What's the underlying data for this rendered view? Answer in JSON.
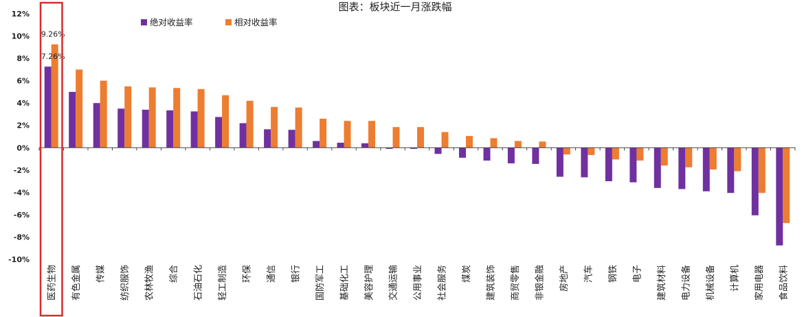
{
  "chart_data": {
    "type": "bar",
    "title": "图表：板块近一月涨跌幅",
    "xlabel": "",
    "ylabel": "",
    "ylim": [
      -10,
      12
    ],
    "y_ticks": [
      "12%",
      "10%",
      "8%",
      "6%",
      "4%",
      "2%",
      "0%",
      "-2%",
      "-4%",
      "-6%",
      "-8%",
      "-10%"
    ],
    "y_tick_values": [
      12,
      10,
      8,
      6,
      4,
      2,
      0,
      -2,
      -4,
      -6,
      -8,
      -10
    ],
    "legend_position": "top-left",
    "grid": false,
    "highlighted_category": "医药生物",
    "highlight_color": "#d92b2b",
    "categories": [
      "医药生物",
      "有色金属",
      "传媒",
      "纺织服饰",
      "农林牧渔",
      "综合",
      "石油石化",
      "轻工制造",
      "环保",
      "通信",
      "银行",
      "国防军工",
      "基础化工",
      "美容护理",
      "交通运输",
      "公用事业",
      "社会服务",
      "煤炭",
      "建筑装饰",
      "商贸零售",
      "非银金融",
      "房地产",
      "汽车",
      "钢铁",
      "电子",
      "建筑材料",
      "电力设备",
      "机械设备",
      "计算机",
      "家用电器",
      "食品饮料"
    ],
    "series": [
      {
        "name": "绝对收益率",
        "color": "#7030a0",
        "values": [
          7.26,
          5.0,
          4.0,
          3.5,
          3.4,
          3.35,
          3.25,
          2.75,
          2.2,
          1.65,
          1.6,
          0.6,
          0.45,
          0.4,
          -0.1,
          -0.1,
          -0.55,
          -0.9,
          -1.15,
          -1.4,
          -1.45,
          -2.6,
          -2.65,
          -3.0,
          -3.1,
          -3.6,
          -3.7,
          -3.9,
          -4.05,
          -6.05,
          -8.75
        ]
      },
      {
        "name": "相对收益率",
        "color": "#ed7d31",
        "values": [
          9.26,
          7.0,
          6.0,
          5.5,
          5.4,
          5.35,
          5.25,
          4.7,
          4.2,
          3.65,
          3.6,
          2.6,
          2.4,
          2.4,
          1.85,
          1.85,
          1.4,
          1.05,
          0.85,
          0.6,
          0.55,
          -0.6,
          -0.65,
          -1.05,
          -1.15,
          -1.6,
          -1.75,
          -1.95,
          -2.1,
          -4.05,
          -6.75
        ]
      }
    ],
    "data_labels": [
      {
        "category": "医药生物",
        "series": "相对收益率",
        "text": "9.26%"
      },
      {
        "category": "医药生物",
        "series": "绝对收益率",
        "text": "7.26%"
      }
    ]
  }
}
